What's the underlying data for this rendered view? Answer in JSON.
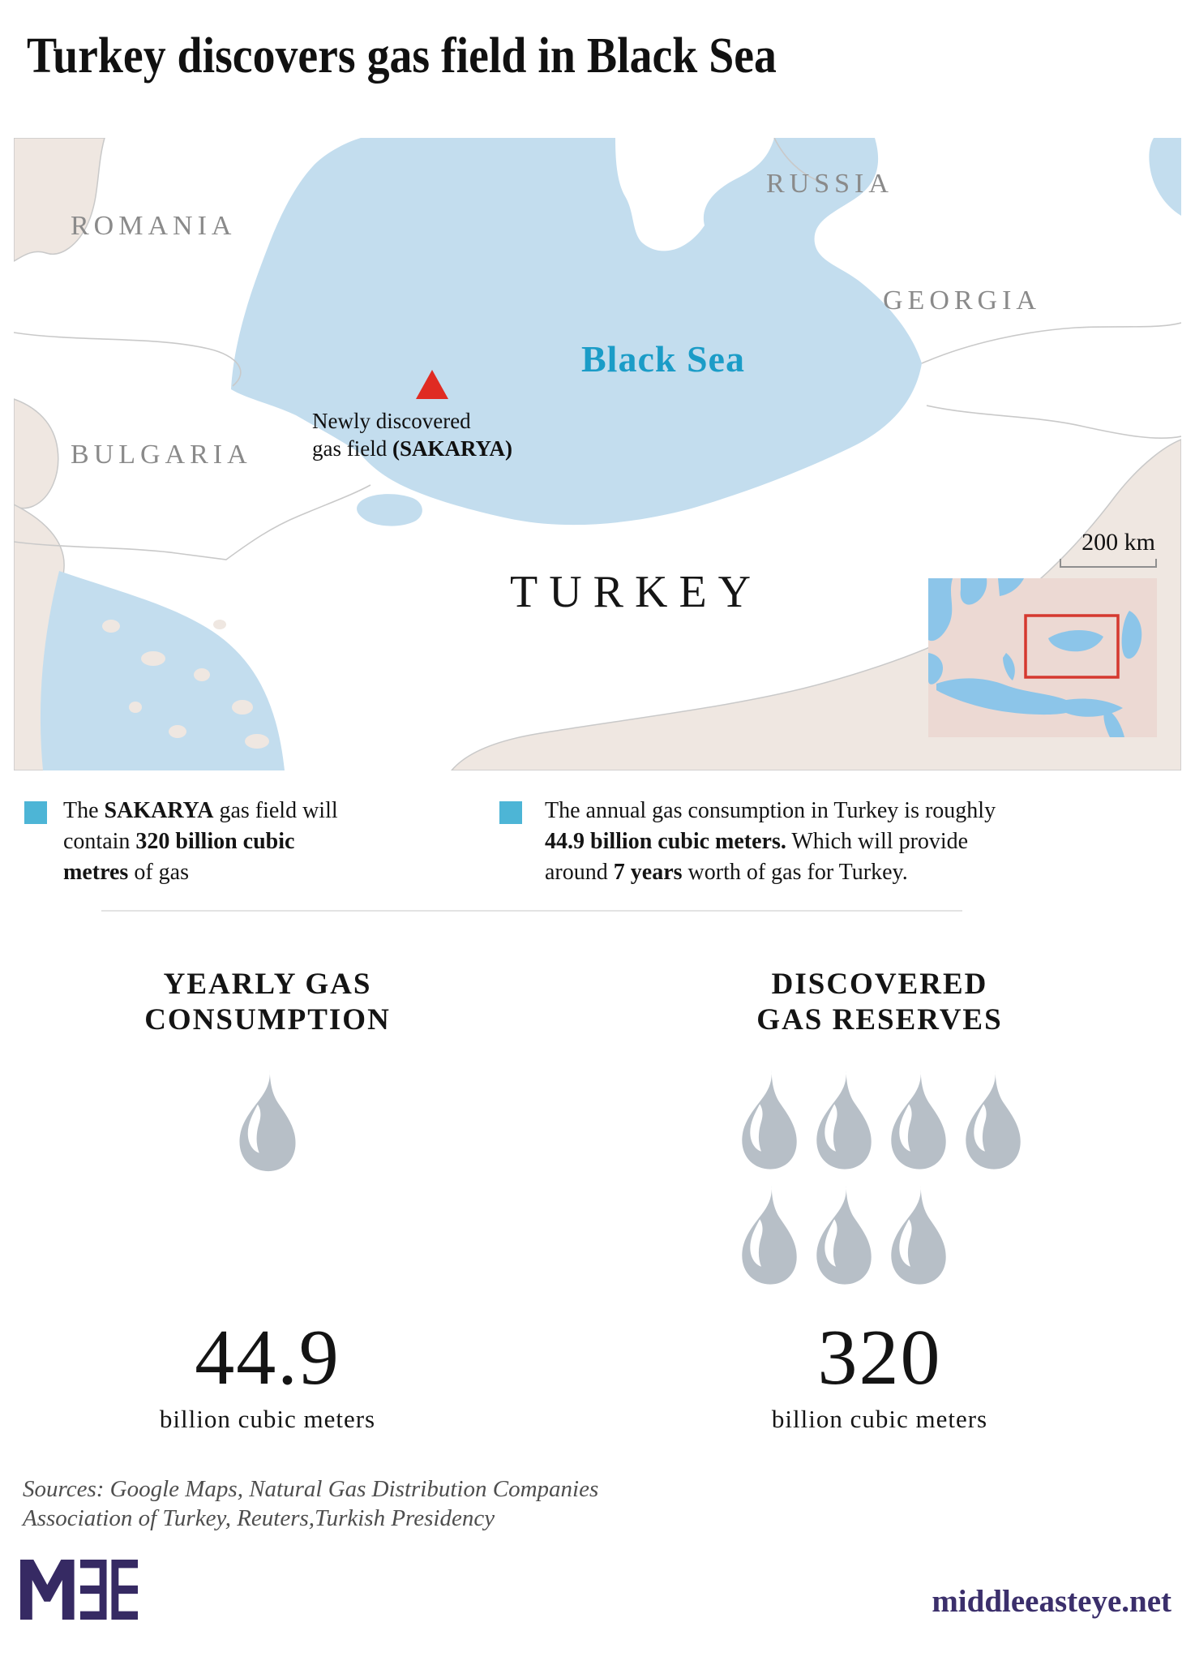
{
  "title": "Turkey discovers gas field in Black Sea",
  "colors": {
    "sea": "#c3ddee",
    "beige": "#efe7e1",
    "border": "#c9c9c9",
    "label": "#8a8a8a",
    "sealabel": "#1b9cc7",
    "red": "#e02b22",
    "inset_land": "#ecd9d3",
    "inset_sea": "#8cc5e9",
    "inset_rect": "#d5392f",
    "flame": "#b7bfc7",
    "bullet": "#4db5d6",
    "divider": "#e3e3e3",
    "logo": "#362a63",
    "site": "#3b2f6b",
    "sources": "#4e4e4e",
    "text": "#111111"
  },
  "map": {
    "labels": {
      "romania": "ROMANIA",
      "bulgaria": "BULGARIA",
      "russia": "RUSSIA",
      "georgia": "GEORGIA",
      "turkey": "TURKEY",
      "black_sea": "Black Sea"
    },
    "marker": {
      "line1": "Newly discovered",
      "line2_lines": [
        [
          {
            "t": "gas field ",
            "b": false
          },
          {
            "t": "(SAKARYA)",
            "b": true
          }
        ]
      ]
    },
    "scale_label": "200 km"
  },
  "bullets": [
    {
      "lines": [
        [
          {
            "t": "The ",
            "b": false
          },
          {
            "t": "SAKARYA",
            "b": true
          },
          {
            "t": " gas field will",
            "b": false
          }
        ],
        [
          {
            "t": "contain ",
            "b": false
          },
          {
            "t": "320 billion cubic",
            "b": true
          }
        ],
        [
          {
            "t": "metres",
            "b": true
          },
          {
            "t": " of gas",
            "b": false
          }
        ]
      ]
    },
    {
      "lines": [
        [
          {
            "t": "The annual gas consumption in Turkey is roughly",
            "b": false
          }
        ],
        [
          {
            "t": "44.9 billion cubic meters.",
            "b": true
          },
          {
            "t": " Which will provide",
            "b": false
          }
        ],
        [
          {
            "t": "around ",
            "b": false
          },
          {
            "t": "7 years",
            "b": true
          },
          {
            "t": " worth of gas for Turkey.",
            "b": false
          }
        ]
      ]
    }
  ],
  "stats": [
    {
      "heading": [
        "YEARLY GAS",
        "CONSUMPTION"
      ],
      "flame_count": 1,
      "value": "44.9",
      "unit": "billion cubic meters"
    },
    {
      "heading": [
        "DISCOVERED",
        "GAS RESERVES"
      ],
      "flame_count": 7,
      "value": "320",
      "unit": "billion cubic meters"
    }
  ],
  "footer": {
    "sources_line1": "Sources: Google Maps, Natural Gas Distribution Companies",
    "sources_line2": "Association of Turkey, Reuters,Turkish Presidency",
    "logo_alt": "MEE",
    "site": "middleeasteye.net"
  },
  "chart_data": [
    {
      "type": "pictogram",
      "title": "Yearly gas consumption",
      "value": 44.9,
      "unit": "billion cubic meters",
      "icons": 1
    },
    {
      "type": "pictogram",
      "title": "Discovered gas reserves",
      "value": 320,
      "unit": "billion cubic meters",
      "icons": 7
    }
  ]
}
